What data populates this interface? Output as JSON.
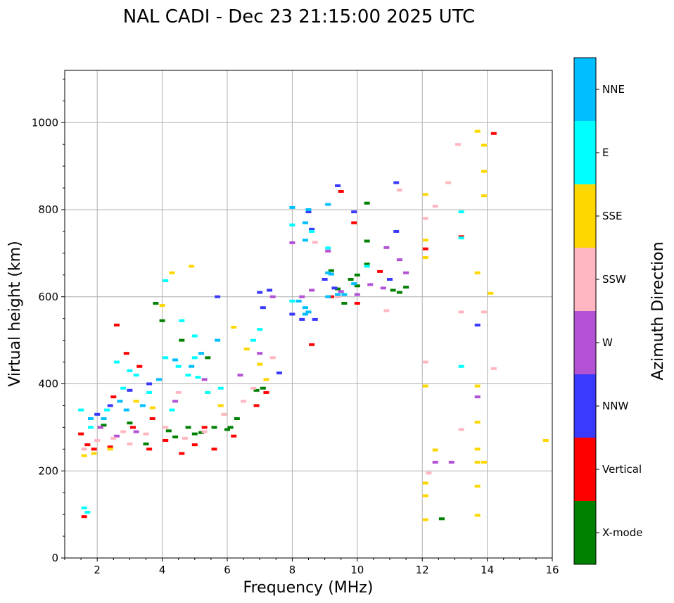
{
  "chart_data": {
    "type": "scatter",
    "title": "NAL CADI - Dec 23 21:15:00 2025 UTC",
    "xlabel": "Frequency (MHz)",
    "ylabel": "Virtual height (km)",
    "xlim": [
      1,
      16
    ],
    "ylim": [
      0,
      1120
    ],
    "xticks": [
      2,
      4,
      6,
      8,
      10,
      12,
      14,
      16
    ],
    "yticks": [
      0,
      200,
      400,
      600,
      800,
      1000
    ],
    "grid": true,
    "colorbar": {
      "label": "Azimuth Direction",
      "categories": [
        {
          "name": "X-mode",
          "color": "#008000"
        },
        {
          "name": "Vertical",
          "color": "#ff0000"
        },
        {
          "name": "NNW",
          "color": "#3a3aff"
        },
        {
          "name": "W",
          "color": "#b452d6"
        },
        {
          "name": "SSW",
          "color": "#ffb6c1"
        },
        {
          "name": "SSE",
          "color": "#ffd700"
        },
        {
          "name": "E",
          "color": "#00ffff"
        },
        {
          "name": "NNE",
          "color": "#00bfff"
        }
      ]
    },
    "series": [
      {
        "name": "X-mode",
        "points": [
          [
            3.5,
            262
          ],
          [
            4.2,
            292
          ],
          [
            4.8,
            300
          ],
          [
            5.2,
            288
          ],
          [
            5.6,
            300
          ],
          [
            6.0,
            295
          ],
          [
            6.3,
            320
          ],
          [
            6.9,
            385
          ],
          [
            7.1,
            390
          ],
          [
            3.8,
            585
          ],
          [
            4.0,
            545
          ],
          [
            4.6,
            500
          ],
          [
            5.4,
            460
          ],
          [
            9.4,
            618
          ],
          [
            9.6,
            585
          ],
          [
            9.8,
            640
          ],
          [
            10.0,
            650
          ],
          [
            10.0,
            625
          ],
          [
            10.3,
            675
          ],
          [
            10.3,
            728
          ],
          [
            10.3,
            815
          ],
          [
            11.1,
            615
          ],
          [
            11.3,
            610
          ],
          [
            11.5,
            622
          ],
          [
            12.6,
            90
          ],
          [
            9.2,
            660
          ],
          [
            2.2,
            305
          ],
          [
            3.0,
            310
          ],
          [
            4.4,
            278
          ],
          [
            5.0,
            285
          ],
          [
            6.1,
            300
          ]
        ]
      },
      {
        "name": "Vertical",
        "points": [
          [
            1.5,
            285
          ],
          [
            1.7,
            260
          ],
          [
            2.1,
            300
          ],
          [
            2.5,
            370
          ],
          [
            2.9,
            470
          ],
          [
            3.3,
            440
          ],
          [
            3.7,
            320
          ],
          [
            4.1,
            270
          ],
          [
            4.6,
            240
          ],
          [
            5.0,
            260
          ],
          [
            5.6,
            250
          ],
          [
            6.2,
            280
          ],
          [
            6.9,
            350
          ],
          [
            7.2,
            380
          ],
          [
            8.6,
            490
          ],
          [
            9.2,
            600
          ],
          [
            9.5,
            842
          ],
          [
            9.9,
            770
          ],
          [
            10.0,
            585
          ],
          [
            10.7,
            658
          ],
          [
            12.1,
            710
          ],
          [
            13.2,
            738
          ],
          [
            14.2,
            975
          ],
          [
            2.6,
            535
          ],
          [
            3.1,
            300
          ],
          [
            1.6,
            95
          ],
          [
            1.9,
            250
          ],
          [
            2.4,
            255
          ],
          [
            3.6,
            250
          ],
          [
            5.3,
            300
          ]
        ]
      },
      {
        "name": "NNW",
        "points": [
          [
            2.0,
            330
          ],
          [
            2.4,
            350
          ],
          [
            3.0,
            385
          ],
          [
            3.6,
            400
          ],
          [
            7.0,
            610
          ],
          [
            7.3,
            615
          ],
          [
            7.6,
            425
          ],
          [
            8.0,
            560
          ],
          [
            8.5,
            795
          ],
          [
            8.6,
            755
          ],
          [
            9.0,
            640
          ],
          [
            9.3,
            620
          ],
          [
            9.4,
            855
          ],
          [
            9.9,
            795
          ],
          [
            11.0,
            640
          ],
          [
            11.2,
            750
          ],
          [
            11.2,
            862
          ],
          [
            13.7,
            535
          ],
          [
            8.3,
            548
          ],
          [
            8.7,
            548
          ],
          [
            5.7,
            600
          ],
          [
            7.1,
            575
          ]
        ]
      },
      {
        "name": "W",
        "points": [
          [
            2.1,
            300
          ],
          [
            2.6,
            280
          ],
          [
            3.2,
            290
          ],
          [
            4.4,
            360
          ],
          [
            5.3,
            410
          ],
          [
            6.4,
            420
          ],
          [
            7.0,
            470
          ],
          [
            7.4,
            600
          ],
          [
            8.3,
            600
          ],
          [
            8.6,
            615
          ],
          [
            9.1,
            705
          ],
          [
            9.5,
            612
          ],
          [
            10.4,
            628
          ],
          [
            10.8,
            620
          ],
          [
            10.9,
            713
          ],
          [
            11.3,
            685
          ],
          [
            11.5,
            655
          ],
          [
            12.4,
            220
          ],
          [
            12.9,
            220
          ],
          [
            13.7,
            370
          ],
          [
            8.0,
            724
          ],
          [
            10.0,
            605
          ]
        ]
      },
      {
        "name": "SSW",
        "points": [
          [
            1.6,
            250
          ],
          [
            2.0,
            270
          ],
          [
            2.5,
            275
          ],
          [
            3.0,
            262
          ],
          [
            3.5,
            285
          ],
          [
            4.1,
            300
          ],
          [
            4.7,
            275
          ],
          [
            5.3,
            290
          ],
          [
            5.9,
            330
          ],
          [
            6.5,
            360
          ],
          [
            6.8,
            390
          ],
          [
            8.7,
            725
          ],
          [
            9.4,
            600
          ],
          [
            10.9,
            568
          ],
          [
            12.1,
            450
          ],
          [
            12.1,
            780
          ],
          [
            12.2,
            195
          ],
          [
            12.4,
            808
          ],
          [
            12.8,
            862
          ],
          [
            13.1,
            950
          ],
          [
            13.2,
            565
          ],
          [
            13.2,
            295
          ],
          [
            13.9,
            565
          ],
          [
            14.2,
            435
          ],
          [
            11.3,
            845
          ],
          [
            2.8,
            290
          ],
          [
            4.5,
            380
          ],
          [
            7.4,
            460
          ]
        ]
      },
      {
        "name": "SSE",
        "points": [
          [
            1.6,
            235
          ],
          [
            1.9,
            240
          ],
          [
            2.4,
            250
          ],
          [
            3.2,
            360
          ],
          [
            4.0,
            580
          ],
          [
            4.3,
            655
          ],
          [
            4.9,
            670
          ],
          [
            5.4,
            380
          ],
          [
            5.8,
            350
          ],
          [
            6.2,
            530
          ],
          [
            6.6,
            480
          ],
          [
            7.0,
            445
          ],
          [
            7.2,
            410
          ],
          [
            12.1,
            835
          ],
          [
            12.1,
            730
          ],
          [
            12.1,
            690
          ],
          [
            12.1,
            395
          ],
          [
            12.1,
            172
          ],
          [
            12.1,
            143
          ],
          [
            12.1,
            88
          ],
          [
            12.4,
            248
          ],
          [
            13.7,
            980
          ],
          [
            13.7,
            655
          ],
          [
            13.7,
            395
          ],
          [
            13.7,
            312
          ],
          [
            13.7,
            250
          ],
          [
            13.7,
            220
          ],
          [
            13.7,
            165
          ],
          [
            13.7,
            98
          ],
          [
            13.9,
            948
          ],
          [
            13.9,
            888
          ],
          [
            13.9,
            832
          ],
          [
            14.1,
            608
          ],
          [
            15.8,
            270
          ],
          [
            13.9,
            220
          ],
          [
            3.7,
            345
          ]
        ]
      },
      {
        "name": "E",
        "points": [
          [
            1.5,
            340
          ],
          [
            1.8,
            300
          ],
          [
            2.3,
            340
          ],
          [
            2.8,
            390
          ],
          [
            3.2,
            420
          ],
          [
            3.6,
            380
          ],
          [
            4.1,
            460
          ],
          [
            4.5,
            440
          ],
          [
            4.8,
            420
          ],
          [
            5.0,
            460
          ],
          [
            5.4,
            380
          ],
          [
            5.8,
            390
          ],
          [
            6.8,
            500
          ],
          [
            7.0,
            525
          ],
          [
            4.1,
            637
          ],
          [
            4.6,
            545
          ],
          [
            5.0,
            510
          ],
          [
            8.0,
            765
          ],
          [
            8.0,
            590
          ],
          [
            8.6,
            750
          ],
          [
            9.1,
            712
          ],
          [
            10.3,
            670
          ],
          [
            13.2,
            440
          ],
          [
            13.2,
            795
          ],
          [
            13.2,
            735
          ],
          [
            1.6,
            115
          ],
          [
            1.7,
            105
          ],
          [
            3.0,
            430
          ],
          [
            4.3,
            340
          ],
          [
            5.1,
            415
          ],
          [
            2.6,
            450
          ]
        ]
      },
      {
        "name": "NNE",
        "points": [
          [
            1.8,
            320
          ],
          [
            2.2,
            320
          ],
          [
            2.7,
            360
          ],
          [
            3.4,
            350
          ],
          [
            3.9,
            410
          ],
          [
            4.4,
            455
          ],
          [
            5.2,
            470
          ],
          [
            5.7,
            500
          ],
          [
            8.0,
            805
          ],
          [
            8.2,
            590
          ],
          [
            8.4,
            575
          ],
          [
            8.5,
            800
          ],
          [
            8.4,
            770
          ],
          [
            8.4,
            730
          ],
          [
            8.4,
            560
          ],
          [
            8.5,
            565
          ],
          [
            9.1,
            600
          ],
          [
            9.2,
            652
          ],
          [
            9.4,
            605
          ],
          [
            9.6,
            605
          ],
          [
            9.9,
            630
          ],
          [
            9.1,
            812
          ],
          [
            9.1,
            655
          ],
          [
            4.9,
            440
          ],
          [
            2.9,
            340
          ]
        ]
      }
    ]
  }
}
